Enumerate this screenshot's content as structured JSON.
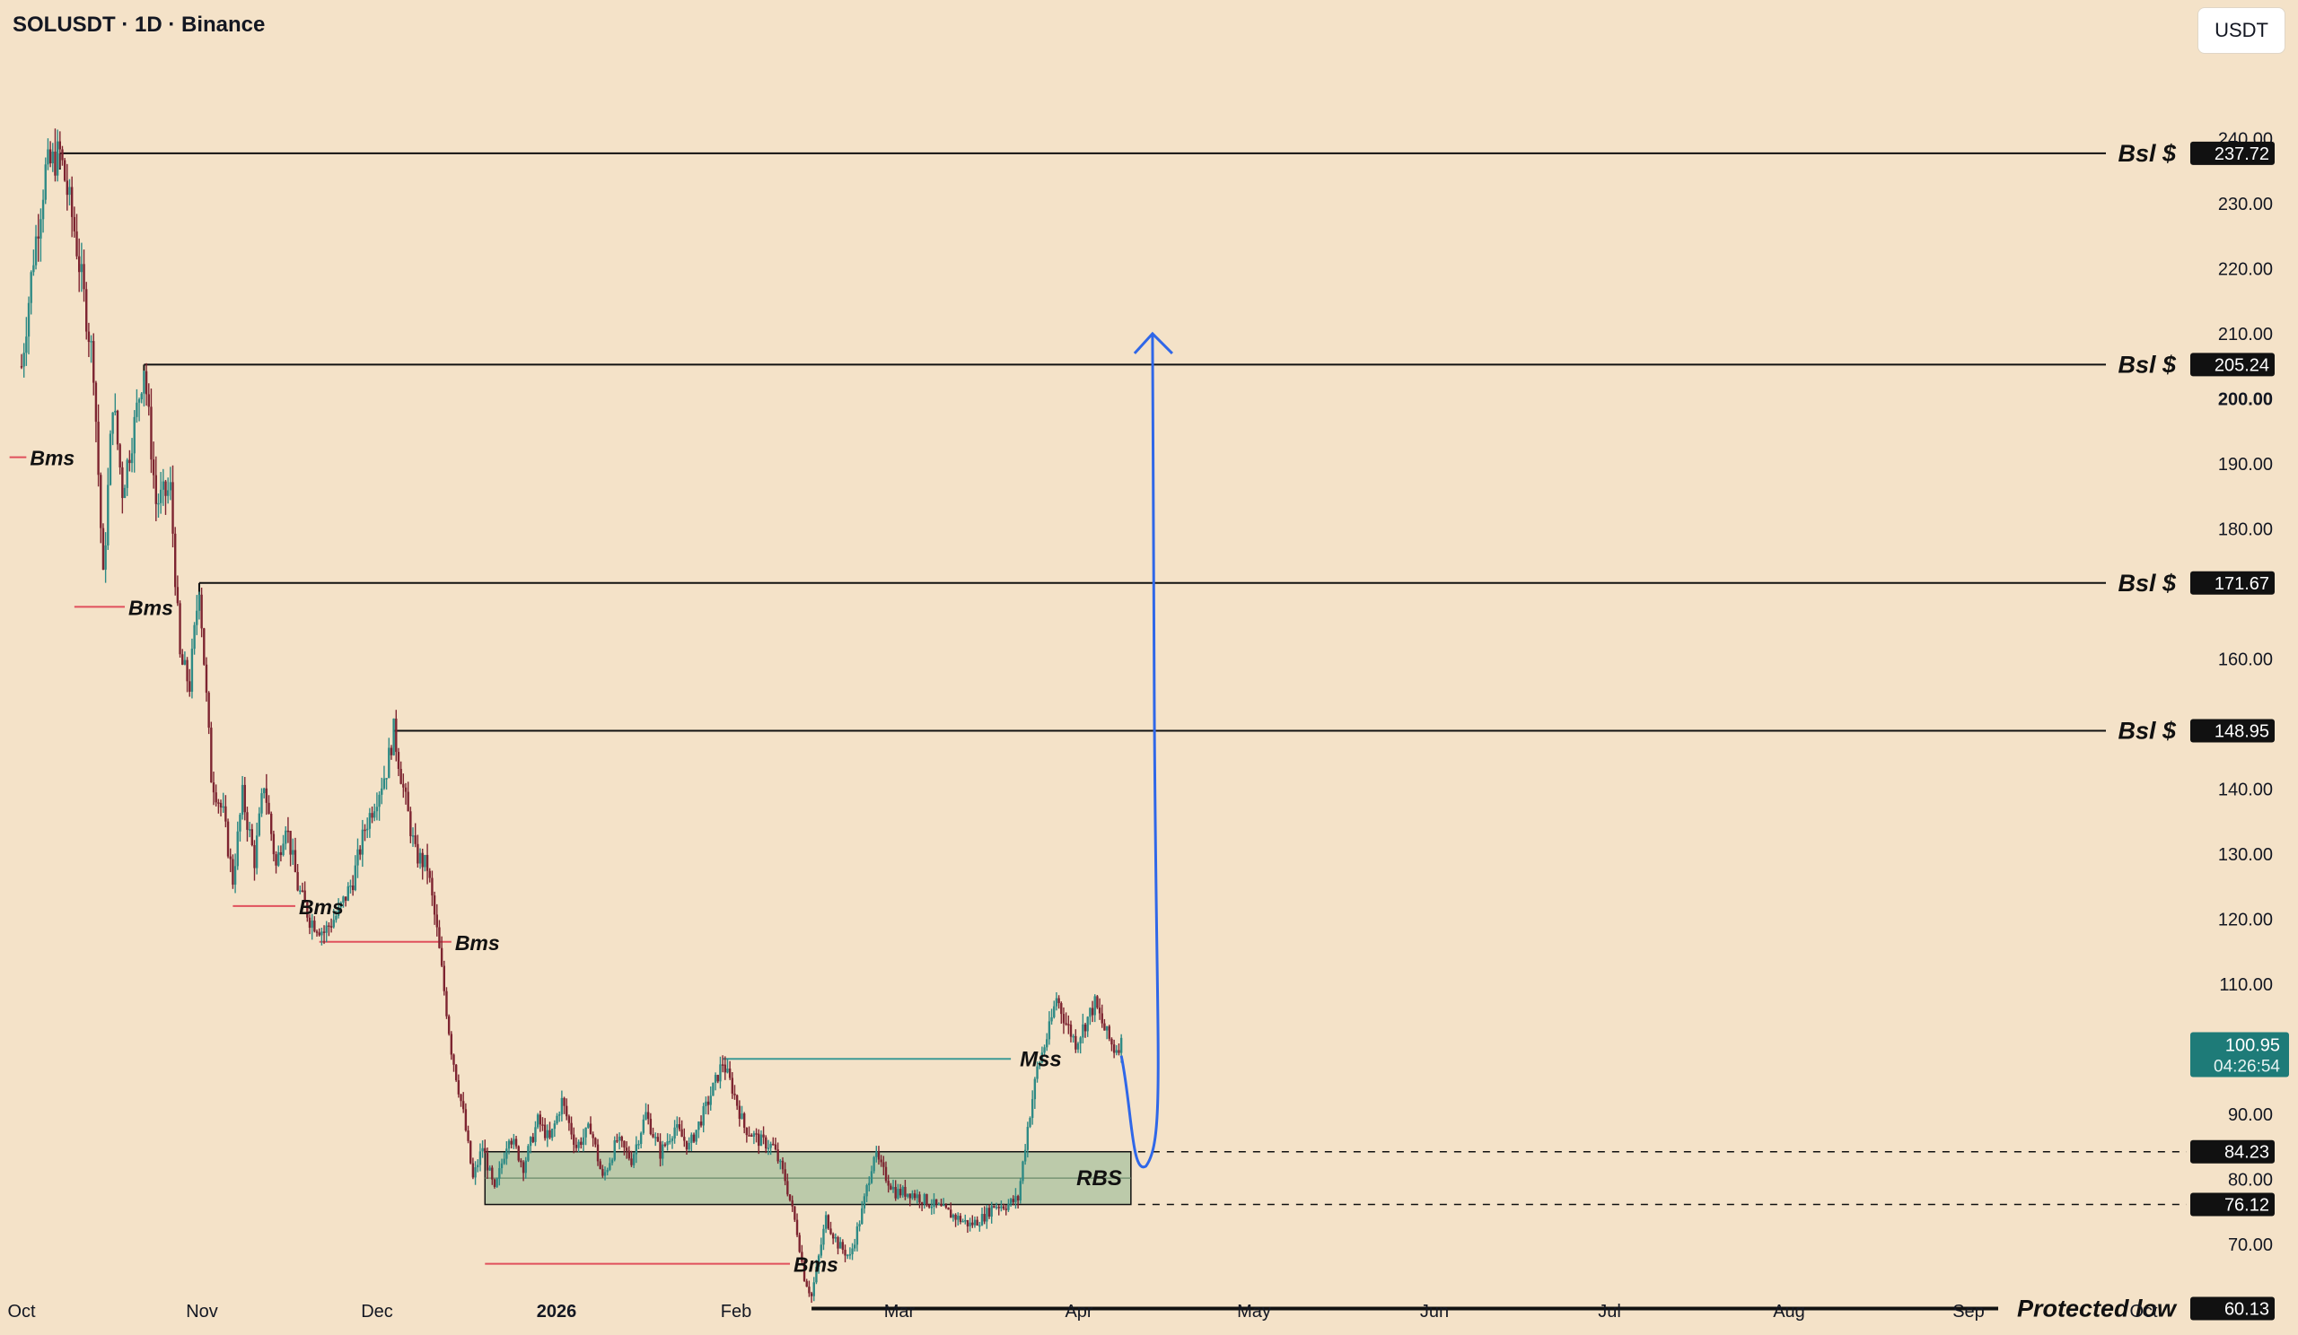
{
  "header": {
    "symbol_title": "SOLUSDT · 1D · Binance",
    "currency_button": "USDT"
  },
  "colors": {
    "background": "#f4e2c8",
    "up_candle": "#2e8a85",
    "down_candle": "#7d2430",
    "level_line": "#111111",
    "bms_line": "#e0505c",
    "mss_line": "#3d9a95",
    "rbs_zone_fill": "#a9c2a0",
    "projection_arrow": "#2f67e8",
    "price_tag": "#1e7b78"
  },
  "chart_data": {
    "type": "candlestick",
    "title": "SOLUSDT · 1D · Binance",
    "y_axis": {
      "ylim": [
        55,
        245
      ],
      "ticks": [
        "70.00",
        "80.00",
        "90.00",
        "110.00",
        "120.00",
        "130.00",
        "140.00",
        "160.00",
        "180.00",
        "190.00",
        "200.00",
        "210.00",
        "220.00",
        "230.00",
        "240.00"
      ],
      "bold_tick": "200.00"
    },
    "x_axis": {
      "labels": [
        "Oct",
        "Nov",
        "Dec",
        "2026",
        "Feb",
        "Mar",
        "Apr",
        "May",
        "Jun",
        "Jul",
        "Aug",
        "Sep",
        "Oct"
      ],
      "bold_label": "2026"
    },
    "current_price": {
      "value": "100.95",
      "countdown": "04:26:54"
    },
    "price_path": [
      [
        0,
        205
      ],
      [
        5,
        222
      ],
      [
        10,
        235
      ],
      [
        16,
        237.72
      ],
      [
        22,
        226
      ],
      [
        30,
        205
      ],
      [
        34,
        172
      ],
      [
        38,
        200
      ],
      [
        42,
        186
      ],
      [
        47,
        196
      ],
      [
        51,
        205.24
      ],
      [
        56,
        184
      ],
      [
        62,
        186
      ],
      [
        66,
        160
      ],
      [
        70,
        156
      ],
      [
        74,
        171.67
      ],
      [
        79,
        142
      ],
      [
        84,
        136
      ],
      [
        88,
        126
      ],
      [
        92,
        139
      ],
      [
        97,
        129
      ],
      [
        101,
        141
      ],
      [
        106,
        128
      ],
      [
        110,
        135
      ],
      [
        115,
        125
      ],
      [
        120,
        120
      ],
      [
        126,
        118
      ],
      [
        132,
        121
      ],
      [
        138,
        126
      ],
      [
        143,
        134
      ],
      [
        148,
        139
      ],
      [
        152,
        143
      ],
      [
        155,
        148.95
      ],
      [
        159,
        140
      ],
      [
        164,
        130
      ],
      [
        169,
        128
      ],
      [
        173,
        118
      ],
      [
        179,
        100
      ],
      [
        184,
        90
      ],
      [
        188,
        80
      ],
      [
        192,
        85
      ],
      [
        197,
        78
      ],
      [
        203,
        87
      ],
      [
        209,
        82
      ],
      [
        215,
        89
      ],
      [
        220,
        86
      ],
      [
        225,
        92
      ],
      [
        231,
        85
      ],
      [
        237,
        88
      ],
      [
        242,
        80
      ],
      [
        248,
        86
      ],
      [
        254,
        83
      ],
      [
        260,
        90
      ],
      [
        266,
        84
      ],
      [
        272,
        88
      ],
      [
        278,
        85
      ],
      [
        285,
        91
      ],
      [
        292,
        98
      ],
      [
        296,
        94
      ],
      [
        301,
        88
      ],
      [
        307,
        86
      ],
      [
        313,
        85
      ],
      [
        318,
        80
      ],
      [
        323,
        72
      ],
      [
        326,
        65
      ],
      [
        329,
        62
      ],
      [
        335,
        74
      ],
      [
        340,
        70
      ],
      [
        345,
        68
      ],
      [
        350,
        75
      ],
      [
        355,
        84
      ],
      [
        359,
        81
      ],
      [
        364,
        78
      ],
      [
        370,
        78
      ],
      [
        375,
        77
      ],
      [
        380,
        76
      ],
      [
        385,
        75
      ],
      [
        390,
        74
      ],
      [
        395,
        73
      ],
      [
        400,
        74
      ],
      [
        405,
        76
      ],
      [
        410,
        76
      ],
      [
        415,
        77
      ],
      [
        419,
        88
      ],
      [
        423,
        97
      ],
      [
        428,
        103
      ],
      [
        431,
        108
      ],
      [
        435,
        104
      ],
      [
        439,
        101
      ],
      [
        443,
        104
      ],
      [
        447,
        107
      ],
      [
        451,
        103
      ],
      [
        455,
        100
      ],
      [
        458,
        101
      ]
    ],
    "levels": [
      {
        "label": "Bsl $",
        "price": 237.72,
        "tag": "237.72",
        "start_day": 16
      },
      {
        "label": "Bsl $",
        "price": 205.24,
        "tag": "205.24",
        "start_day": 51
      },
      {
        "label": "Bsl $",
        "price": 171.67,
        "tag": "171.67",
        "start_day": 74
      },
      {
        "label": "Bsl $",
        "price": 148.95,
        "tag": "148.95",
        "start_day": 155
      }
    ],
    "bms_lines": [
      {
        "label": "Bms",
        "price": 191,
        "start_day": -5,
        "end_day": 2
      },
      {
        "label": "Bms",
        "price": 168,
        "start_day": 22,
        "end_day": 43
      },
      {
        "label": "Bms",
        "price": 122,
        "start_day": 88,
        "end_day": 114
      },
      {
        "label": "Bms",
        "price": 116.5,
        "start_day": 124,
        "end_day": 179
      },
      {
        "label": "Bms",
        "price": 67,
        "start_day": 193,
        "end_day": 320
      }
    ],
    "mss_line": {
      "label": "Mss",
      "price": 98.5,
      "start_day": 292,
      "end_day": 412
    },
    "rbs_zone": {
      "label": "RBS",
      "top": 84.23,
      "bottom": 76.12,
      "start_day": 193,
      "end_day": 462,
      "top_tag": "84.23",
      "bottom_tag": "76.12"
    },
    "protected_low": {
      "label": "Protected low",
      "price": 60.13,
      "tag": "60.13",
      "start_day": 329,
      "end_day": 444
    },
    "projection": {
      "from_day": 458,
      "from_price": 99,
      "low_day": 466,
      "low_price": 82,
      "high_day": 468,
      "high_price": 210
    }
  }
}
